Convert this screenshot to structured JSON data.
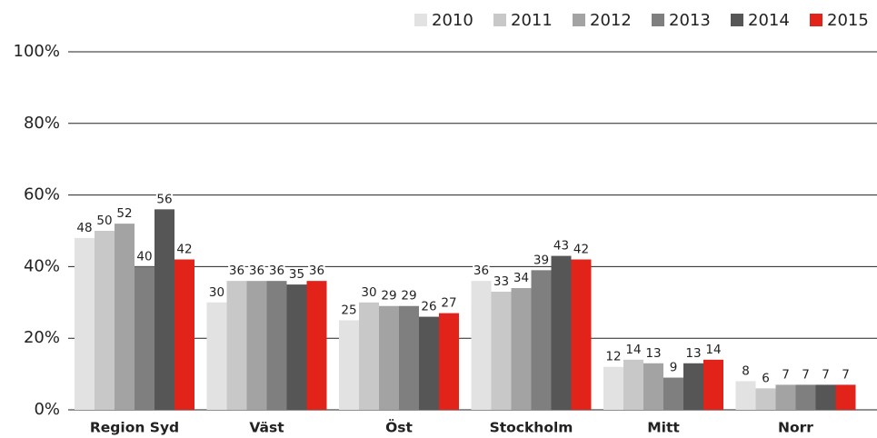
{
  "chart_data": {
    "type": "bar",
    "categories": [
      "Region Syd",
      "Väst",
      "Öst",
      "Stockholm",
      "Mitt",
      "Norr"
    ],
    "series": [
      {
        "name": "2010",
        "color": "#e2e2e2",
        "values": [
          48,
          30,
          25,
          36,
          12,
          8
        ]
      },
      {
        "name": "2011",
        "color": "#c8c8c8",
        "values": [
          50,
          36,
          30,
          33,
          14,
          6
        ]
      },
      {
        "name": "2012",
        "color": "#a3a3a3",
        "values": [
          52,
          36,
          29,
          34,
          13,
          7
        ]
      },
      {
        "name": "2013",
        "color": "#7f7f7f",
        "values": [
          40,
          36,
          29,
          39,
          9,
          7
        ]
      },
      {
        "name": "2014",
        "color": "#565656",
        "values": [
          56,
          35,
          26,
          43,
          13,
          7
        ]
      },
      {
        "name": "2015",
        "color": "#e2231a",
        "values": [
          42,
          36,
          27,
          42,
          14,
          7
        ]
      }
    ],
    "ylim": [
      0,
      100
    ],
    "yticks": [
      {
        "value": 0,
        "label": "0%"
      },
      {
        "value": 20,
        "label": "20%"
      },
      {
        "value": 40,
        "label": "40%"
      },
      {
        "value": 60,
        "label": "60%"
      },
      {
        "value": 80,
        "label": "80%"
      },
      {
        "value": 100,
        "label": "100%"
      }
    ],
    "grid": true,
    "legend": "top-right"
  }
}
